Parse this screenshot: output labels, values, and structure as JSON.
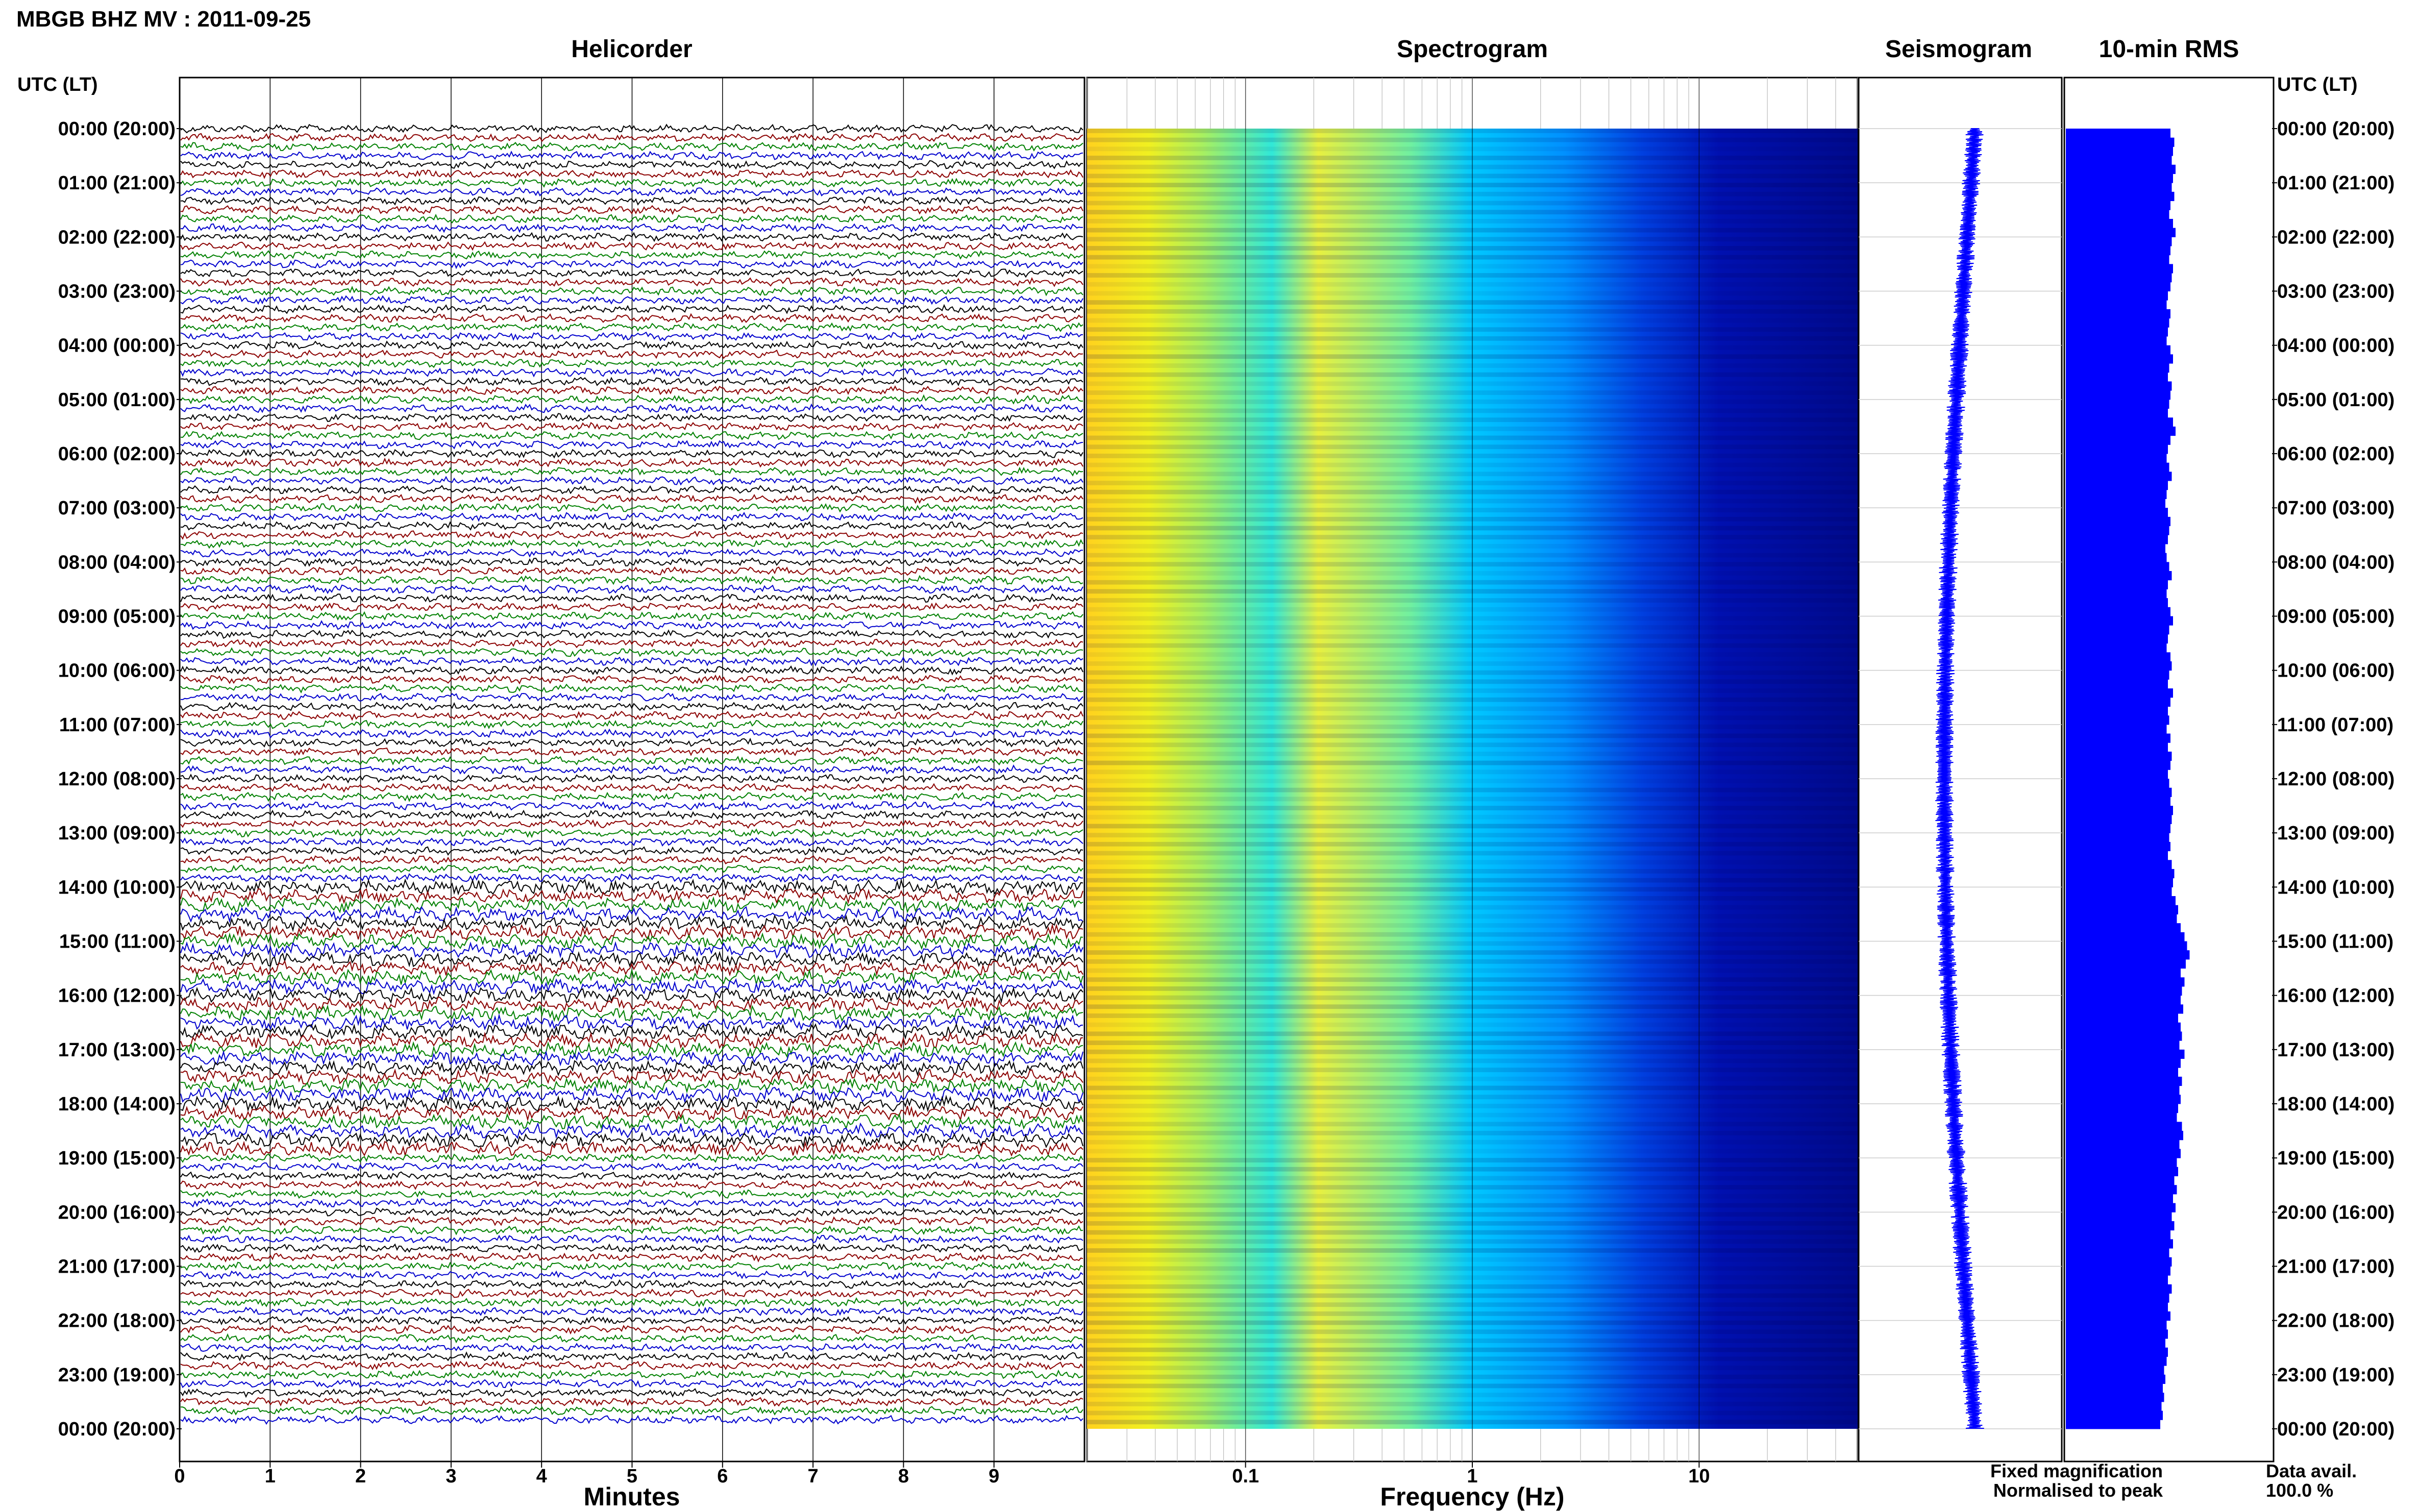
{
  "header": {
    "station_title": "MBGB BHZ MV : 2011-09-25"
  },
  "panels": {
    "helicorder": "Helicorder",
    "spectrogram": "Spectrogram",
    "seismogram": "Seismogram",
    "rms": "10-min RMS"
  },
  "labels": {
    "utc_left": "UTC (LT)",
    "utc_right": "UTC (LT)"
  },
  "legend": {
    "fixed": "Fixed magnification",
    "normalised": "Normalised to peak",
    "fixed_color": "#0000ff",
    "normalised_color": "#ff0000"
  },
  "data_avail": {
    "label": "Data avail.",
    "value": "100.0 %"
  },
  "colors": {
    "trace_cycle": [
      "#000000",
      "#8b0000",
      "#008000",
      "#0000cd"
    ],
    "spectrogram_low": "#00008b",
    "spectrogram_mid": "#00bfff",
    "spectrogram_high": "#ffff00",
    "seismogram": "#0000ff",
    "rms": "#0000ff"
  },
  "chart_data": [
    {
      "type": "line",
      "name": "helicorder",
      "title": "Helicorder",
      "xlabel": "Minutes",
      "x_ticks": [
        "0",
        "1",
        "2",
        "3",
        "4",
        "5",
        "6",
        "7",
        "8",
        "9"
      ],
      "xlim": [
        0,
        10
      ],
      "rows_per_hour": 6,
      "hours": 24,
      "trace_color_cycle": [
        "black",
        "darkred",
        "green",
        "blue"
      ],
      "time_labels": [
        "00:00 (20:00)",
        "01:00 (21:00)",
        "02:00 (22:00)",
        "03:00 (23:00)",
        "04:00 (00:00)",
        "05:00 (01:00)",
        "06:00 (02:00)",
        "07:00 (03:00)",
        "08:00 (04:00)",
        "09:00 (05:00)",
        "10:00 (06:00)",
        "11:00 (07:00)",
        "12:00 (08:00)",
        "13:00 (09:00)",
        "14:00 (10:00)",
        "15:00 (11:00)",
        "16:00 (12:00)",
        "17:00 (13:00)",
        "18:00 (14:00)",
        "19:00 (15:00)",
        "20:00 (16:00)",
        "21:00 (17:00)",
        "22:00 (18:00)",
        "23:00 (19:00)",
        "00:00 (20:00)"
      ],
      "noisy_hours": [
        14,
        15,
        16,
        17,
        18
      ]
    },
    {
      "type": "heatmap",
      "name": "spectrogram",
      "title": "Spectrogram",
      "xlabel": "Frequency (Hz)",
      "x_scale": "log",
      "x_ticks": [
        "0.1",
        "1",
        "10"
      ],
      "xlim": [
        0.02,
        50
      ],
      "colormap": "jet"
    },
    {
      "type": "line",
      "name": "seismogram",
      "title": "Seismogram",
      "hours": 24
    },
    {
      "type": "bar",
      "name": "rms",
      "title": "10-min RMS",
      "orientation": "horizontal",
      "bars": 144,
      "values_relative": [
        0.82,
        0.85,
        0.84,
        0.83,
        0.86,
        0.84,
        0.83,
        0.85,
        0.82,
        0.81,
        0.84,
        0.86,
        0.83,
        0.82,
        0.81,
        0.84,
        0.83,
        0.82,
        0.8,
        0.79,
        0.82,
        0.81,
        0.8,
        0.79,
        0.82,
        0.84,
        0.81,
        0.8,
        0.83,
        0.82,
        0.81,
        0.8,
        0.84,
        0.86,
        0.82,
        0.8,
        0.79,
        0.81,
        0.83,
        0.8,
        0.79,
        0.78,
        0.8,
        0.82,
        0.81,
        0.8,
        0.78,
        0.79,
        0.81,
        0.83,
        0.8,
        0.79,
        0.8,
        0.82,
        0.84,
        0.81,
        0.8,
        0.79,
        0.82,
        0.83,
        0.81,
        0.8,
        0.84,
        0.82,
        0.8,
        0.81,
        0.79,
        0.82,
        0.8,
        0.83,
        0.82,
        0.8,
        0.81,
        0.83,
        0.82,
        0.84,
        0.83,
        0.82,
        0.81,
        0.82,
        0.8,
        0.83,
        0.85,
        0.84,
        0.83,
        0.86,
        0.88,
        0.87,
        0.9,
        0.93,
        0.95,
        0.97,
        0.94,
        0.9,
        0.93,
        0.91,
        0.9,
        0.92,
        0.88,
        0.9,
        0.91,
        0.89,
        0.93,
        0.9,
        0.88,
        0.91,
        0.89,
        0.9,
        0.88,
        0.87,
        0.91,
        0.92,
        0.89,
        0.9,
        0.87,
        0.88,
        0.85,
        0.87,
        0.84,
        0.86,
        0.83,
        0.85,
        0.82,
        0.84,
        0.81,
        0.83,
        0.82,
        0.8,
        0.83,
        0.81,
        0.8,
        0.82,
        0.79,
        0.8,
        0.78,
        0.8,
        0.79,
        0.77,
        0.78,
        0.76,
        0.77,
        0.75,
        0.76,
        0.74
      ]
    }
  ]
}
